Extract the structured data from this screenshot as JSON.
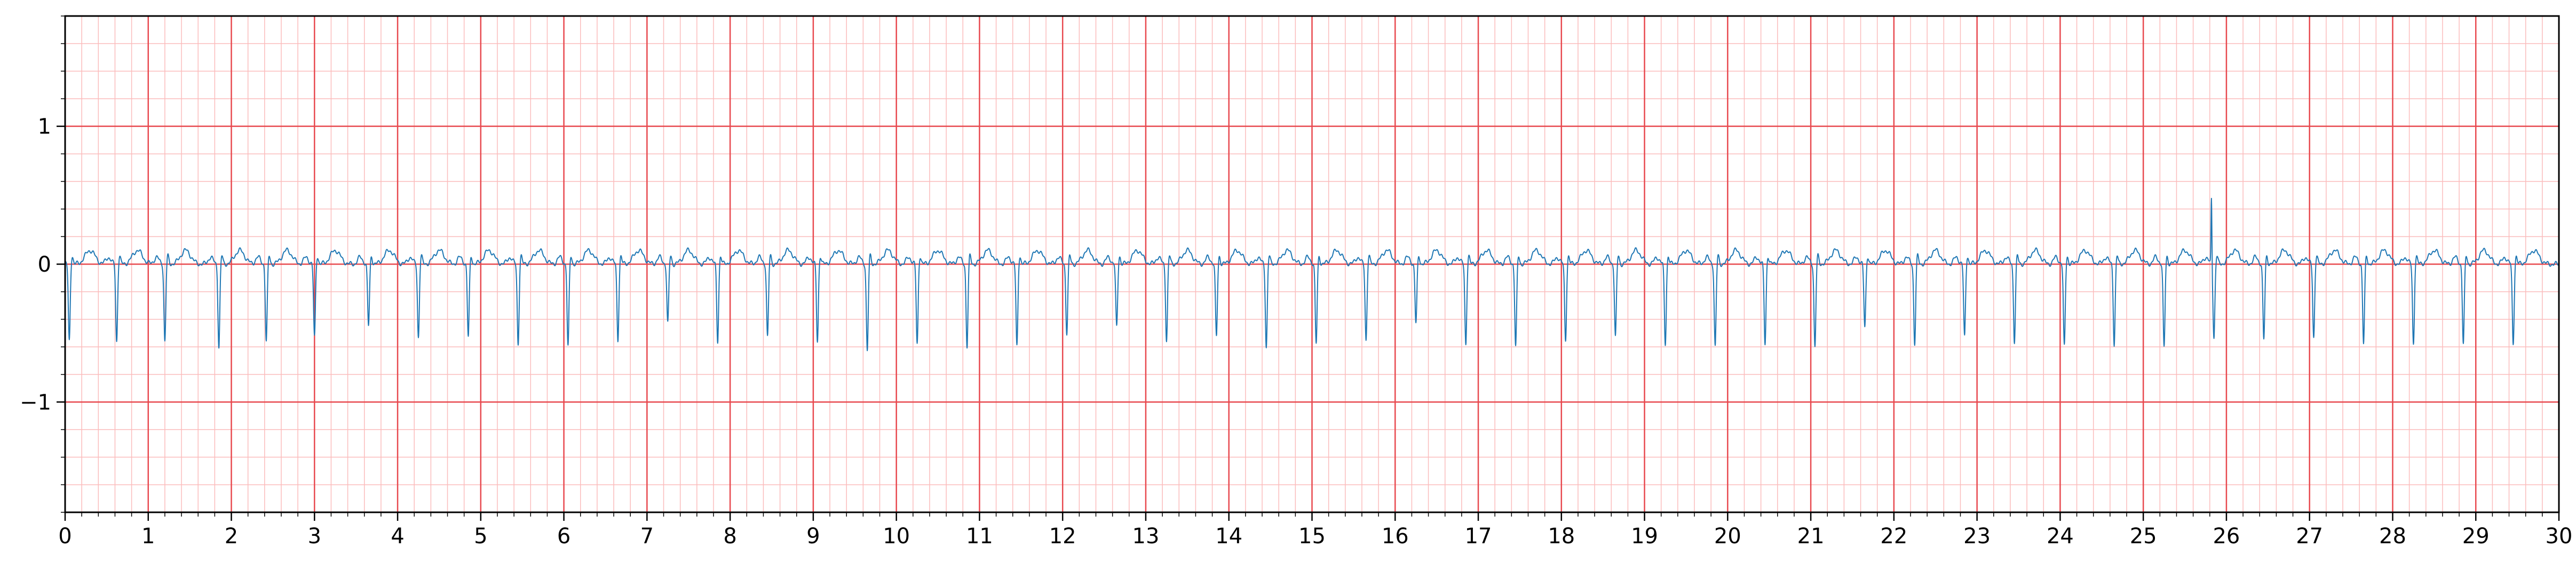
{
  "chart_data": {
    "type": "line",
    "title": "",
    "xlabel": "",
    "ylabel": "",
    "xlim": [
      0,
      30
    ],
    "ylim": [
      -1.8,
      1.8
    ],
    "grid": {
      "major_step_x": 1,
      "major_step_y": 1,
      "minor_step_x": 0.2,
      "minor_step_y": 0.2,
      "major_color": "#e8494f",
      "minor_color": "#fbbcbc"
    },
    "x_ticks": [
      "0",
      "1",
      "2",
      "3",
      "4",
      "5",
      "6",
      "7",
      "8",
      "9",
      "10",
      "11",
      "12",
      "13",
      "14",
      "15",
      "16",
      "17",
      "18",
      "19",
      "20",
      "21",
      "22",
      "23",
      "24",
      "25",
      "26",
      "27",
      "28",
      "29",
      "30"
    ],
    "y_ticks": [
      {
        "value": 1,
        "label": "1"
      },
      {
        "value": 0,
        "label": "0"
      },
      {
        "value": -1,
        "label": "−1"
      }
    ],
    "series": [
      {
        "color": "#1f77b4",
        "line_width": 2,
        "beat_times": [
          0.05,
          0.62,
          1.2,
          1.85,
          2.42,
          3.0,
          3.65,
          4.25,
          4.85,
          5.45,
          6.05,
          6.65,
          7.25,
          7.85,
          8.45,
          9.05,
          9.65,
          10.25,
          10.85,
          11.45,
          12.05,
          12.65,
          13.25,
          13.85,
          14.45,
          15.05,
          15.65,
          16.25,
          16.85,
          17.45,
          18.05,
          18.65,
          19.25,
          19.85,
          20.45,
          21.05,
          21.65,
          22.25,
          22.85,
          23.45,
          24.05,
          24.65,
          25.25,
          25.85,
          26.45,
          27.05,
          27.65,
          28.25,
          28.85,
          29.45
        ],
        "trough_values": [
          -0.58,
          -0.58,
          -0.58,
          -0.62,
          -0.58,
          -0.55,
          -0.47,
          -0.55,
          -0.55,
          -0.6,
          -0.62,
          -0.57,
          -0.45,
          -0.58,
          -0.55,
          -0.58,
          -0.65,
          -0.6,
          -0.62,
          -0.62,
          -0.52,
          -0.48,
          -0.57,
          -0.55,
          -0.62,
          -0.6,
          -0.57,
          -0.45,
          -0.6,
          -0.62,
          -0.57,
          -0.55,
          -0.6,
          -0.62,
          -0.6,
          -0.62,
          -0.48,
          -0.6,
          -0.55,
          -0.58,
          -0.62,
          -0.6,
          -0.63,
          -0.55,
          -0.57,
          -0.55,
          -0.6,
          -0.6,
          -0.6,
          -0.6
        ],
        "t_wave_peak": 0.1,
        "artifact": {
          "x": 25.82,
          "y": 0.48
        }
      }
    ]
  }
}
